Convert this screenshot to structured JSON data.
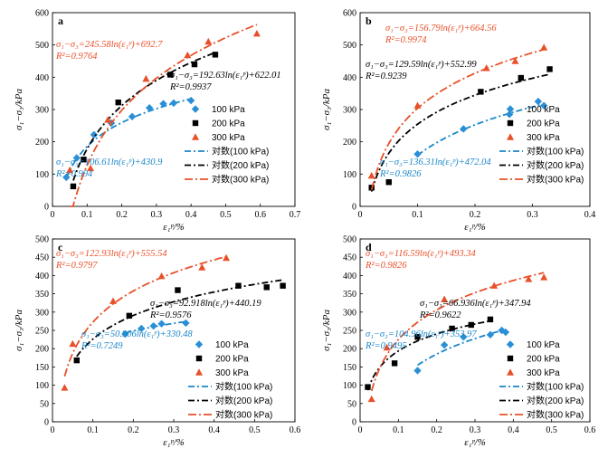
{
  "colors": {
    "s100": "#1a86c8",
    "s200": "#000000",
    "s300": "#e8502a",
    "marker100": "#2a8fd6",
    "marker200": "#000000",
    "marker300": "#e8502a"
  },
  "legend_labels": [
    "100 kPa",
    "200 kPa",
    "300 kPa",
    "对数(100 kPa)",
    "对数(200 kPa)",
    "对数(300 kPa)"
  ],
  "chart_data": [
    {
      "type": "scatter",
      "panel": "a",
      "xlabel": "ε₁ᵖ/%",
      "ylabel": "σ₁−σ₃/kPa",
      "xlim": [
        0,
        0.7
      ],
      "ylim": [
        0,
        600
      ],
      "xticks": [
        "0",
        "0.1",
        "0.2",
        "0.3",
        "0.4",
        "0.5",
        "0.6",
        "0.7"
      ],
      "yticks": [
        "0",
        "100",
        "200",
        "300",
        "400",
        "500",
        "600"
      ],
      "series": [
        {
          "name": "100 kPa",
          "marker": "diamond",
          "x": [
            0.04,
            0.07,
            0.12,
            0.17,
            0.23,
            0.28,
            0.32,
            0.35,
            0.4
          ],
          "y": [
            90,
            150,
            222,
            258,
            278,
            305,
            318,
            320,
            328
          ],
          "fit": {
            "a": 106.61,
            "b": 430.9
          }
        },
        {
          "name": "200 kPa",
          "marker": "square",
          "x": [
            0.06,
            0.09,
            0.19,
            0.34,
            0.41,
            0.47
          ],
          "y": [
            62,
            145,
            322,
            408,
            440,
            470
          ],
          "fit": {
            "a": 192.63,
            "b": 622.01
          }
        },
        {
          "name": "300 kPa",
          "marker": "triangle",
          "x": [
            0.05,
            0.11,
            0.16,
            0.27,
            0.39,
            0.45,
            0.59
          ],
          "y": [
            112,
            118,
            268,
            395,
            468,
            510,
            535
          ],
          "fit": {
            "a": 245.58,
            "b": 692.7
          }
        }
      ],
      "equations": [
        {
          "text": "σ₁−σ₃=245.58ln(ε₁ᵖ)+692.7",
          "r2": "R²=0.9764",
          "series": 2
        },
        {
          "text": "σ₁−σ₃=192.63ln(ε₁ᵖ)+622.01",
          "r2": "R²=0.9937",
          "series": 1
        },
        {
          "text": "σ₁−σ₃=106.61ln(ε₁ᵖ)+430.9",
          "r2": "R²=0.994",
          "series": 0
        }
      ]
    },
    {
      "type": "scatter",
      "panel": "b",
      "xlabel": "ε₁ᵖ/%",
      "ylabel": "σ₁−σ₃/kPa",
      "xlim": [
        0,
        0.4
      ],
      "ylim": [
        0,
        600
      ],
      "xticks": [
        "0",
        "0.1",
        "0.2",
        "0.3",
        "0.4"
      ],
      "yticks": [
        "0",
        "100",
        "200",
        "300",
        "400",
        "500",
        "600"
      ],
      "series": [
        {
          "name": "100 kPa",
          "marker": "diamond",
          "x": [
            0.1,
            0.18,
            0.26,
            0.31,
            0.32
          ],
          "y": [
            162,
            240,
            285,
            325,
            312
          ],
          "fit": {
            "a": 136.31,
            "b": 472.04
          }
        },
        {
          "name": "200 kPa",
          "marker": "square",
          "x": [
            0.02,
            0.05,
            0.21,
            0.28,
            0.33
          ],
          "y": [
            58,
            75,
            355,
            398,
            425
          ],
          "fit": {
            "a": 129.59,
            "b": 552.99
          }
        },
        {
          "name": "300 kPa",
          "marker": "triangle",
          "x": [
            0.02,
            0.1,
            0.22,
            0.27,
            0.32
          ],
          "y": [
            95,
            312,
            428,
            450,
            492
          ],
          "fit": {
            "a": 156.79,
            "b": 664.56
          }
        }
      ],
      "equations": [
        {
          "text": "σ₁−σ₃=156.79ln(ε₁ᵖ)+664.56",
          "r2": "R²=0.9974",
          "series": 2
        },
        {
          "text": "σ₁−σ₃=129.59ln(ε₁ᵖ)+552.99",
          "r2": "R²=0.9239",
          "series": 1
        },
        {
          "text": "σ₁−σ₃=136.31ln(ε₁ᵖ)+472.04",
          "r2": "R²=0.9826",
          "series": 0
        }
      ]
    },
    {
      "type": "scatter",
      "panel": "c",
      "xlabel": "ε₁ᵖ/%",
      "ylabel": "σ₁−σ₃/kPa",
      "xlim": [
        0,
        0.6
      ],
      "ylim": [
        0,
        500
      ],
      "xticks": [
        "0",
        "0.1",
        "0.2",
        "0.3",
        "0.4",
        "0.5",
        "0.6"
      ],
      "yticks": [
        "0",
        "50",
        "100",
        "150",
        "200",
        "250",
        "300",
        "350",
        "400",
        "450",
        "500"
      ],
      "series": [
        {
          "name": "100 kPa",
          "marker": "diamond",
          "x": [
            0.18,
            0.22,
            0.25,
            0.27,
            0.33
          ],
          "y": [
            240,
            255,
            262,
            268,
            270
          ],
          "fit": {
            "a": 50.906,
            "b": 330.48
          }
        },
        {
          "name": "200 kPa",
          "marker": "square",
          "x": [
            0.06,
            0.19,
            0.31,
            0.46,
            0.53,
            0.57
          ],
          "y": [
            168,
            290,
            360,
            372,
            368,
            372
          ],
          "fit": {
            "a": 92.918,
            "b": 440.19
          }
        },
        {
          "name": "300 kPa",
          "marker": "triangle",
          "x": [
            0.03,
            0.05,
            0.15,
            0.27,
            0.37,
            0.43
          ],
          "y": [
            93,
            213,
            330,
            398,
            422,
            448
          ],
          "fit": {
            "a": 122.93,
            "b": 555.54
          }
        }
      ],
      "equations": [
        {
          "text": "σ₁−σ₃=122.93ln(ε₁ᵖ)+555.54",
          "r2": "R²=0.9797",
          "series": 2
        },
        {
          "text": "σ₁−σ₃=92.918ln(ε₁ᵖ)+440.19",
          "r2": "R²=0.9576",
          "series": 1
        },
        {
          "text": "σ₁−σ₃=50.906ln(ε₁ᵖ)+330.48",
          "r2": "R²=0.7249",
          "series": 0
        }
      ]
    },
    {
      "type": "scatter",
      "panel": "d",
      "xlabel": "ε₁ᵖ/%",
      "ylabel": "σ₁−σ₃/kPa",
      "xlim": [
        0,
        0.6
      ],
      "ylim": [
        0,
        500
      ],
      "xticks": [
        "0",
        "0.1",
        "0.2",
        "0.3",
        "0.4",
        "0.5",
        "0.6"
      ],
      "yticks": [
        "0",
        "50",
        "100",
        "150",
        "200",
        "250",
        "300",
        "350",
        "400",
        "450",
        "500"
      ],
      "series": [
        {
          "name": "100 kPa",
          "marker": "diamond",
          "x": [
            0.15,
            0.22,
            0.27,
            0.34,
            0.37,
            0.38
          ],
          "y": [
            140,
            210,
            232,
            238,
            250,
            245
          ],
          "fit": {
            "a": 104.96,
            "b": 353.97
          }
        },
        {
          "name": "200 kPa",
          "marker": "square",
          "x": [
            0.02,
            0.09,
            0.15,
            0.24,
            0.29,
            0.34
          ],
          "y": [
            95,
            160,
            232,
            255,
            265,
            280
          ],
          "fit": {
            "a": 66.936,
            "b": 347.94
          }
        },
        {
          "name": "300 kPa",
          "marker": "triangle",
          "x": [
            0.03,
            0.07,
            0.22,
            0.35,
            0.44,
            0.48
          ],
          "y": [
            62,
            203,
            335,
            372,
            390,
            395
          ],
          "fit": {
            "a": 116.59,
            "b": 493.34
          }
        }
      ],
      "equations": [
        {
          "text": "σ₁−σ₃=116.59ln(ε₁ᵖ)+493.34",
          "r2": "R²=0.9826",
          "series": 2
        },
        {
          "text": "σ₁−σ₃=66.936ln(ε₁ᵖ)+347.94",
          "r2": "R²=0.9622",
          "series": 1
        },
        {
          "text": "σ₁−σ₃=104.96ln(ε₁ᵖ)+353.97",
          "r2": "R²=0.9495",
          "series": 0
        }
      ]
    }
  ]
}
